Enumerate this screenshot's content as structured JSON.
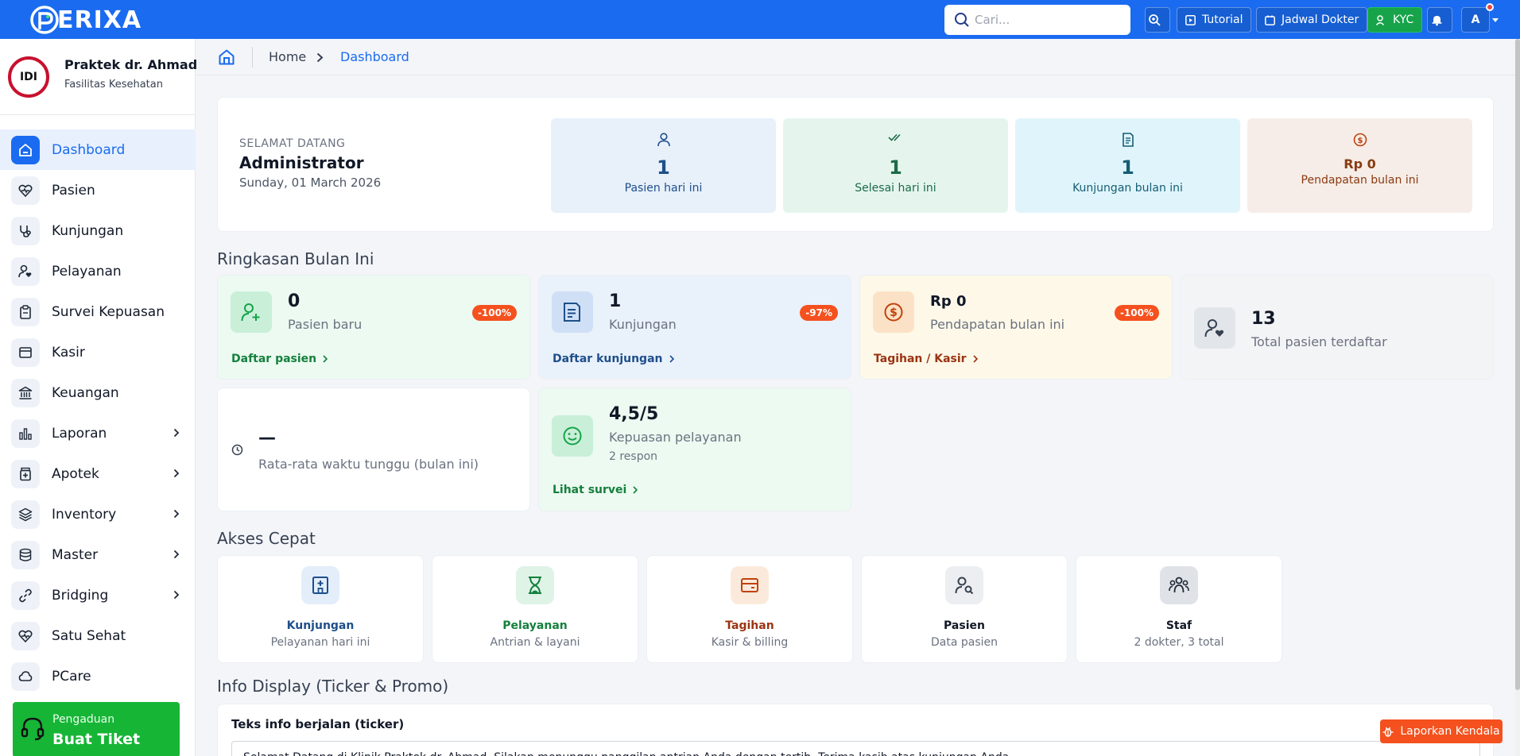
{
  "brand": {
    "name": "ERIXA"
  },
  "topbar": {
    "search_placeholder": "Cari...",
    "tutorial_label": "Tutorial",
    "schedule_label": "Jadwal Dokter",
    "kyc_label": "KYC",
    "avatar_letter": "A"
  },
  "sidebar": {
    "clinic_name": "Praktek dr. Ahmad",
    "clinic_type": "Fasilitas Kesehatan",
    "clinic_logo_text": "IDI",
    "items": [
      {
        "label": "Dashboard",
        "icon": "home-icon",
        "active": true
      },
      {
        "label": "Pasien",
        "icon": "heart-icon"
      },
      {
        "label": "Kunjungan",
        "icon": "stethoscope-icon"
      },
      {
        "label": "Pelayanan",
        "icon": "user-heart-icon"
      },
      {
        "label": "Survei Kepuasan",
        "icon": "clipboard-icon"
      },
      {
        "label": "Kasir",
        "icon": "cash-register-icon"
      },
      {
        "label": "Keuangan",
        "icon": "bank-icon"
      },
      {
        "label": "Laporan",
        "icon": "bar-chart-icon",
        "submenu": true
      },
      {
        "label": "Apotek",
        "icon": "medicine-icon",
        "submenu": true
      },
      {
        "label": "Inventory",
        "icon": "layers-icon",
        "submenu": true
      },
      {
        "label": "Master",
        "icon": "database-icon",
        "submenu": true
      },
      {
        "label": "Bridging",
        "icon": "link-icon",
        "submenu": true
      },
      {
        "label": "Satu Sehat",
        "icon": "heart-pulse-icon"
      },
      {
        "label": "PCare",
        "icon": "cloud-icon"
      }
    ],
    "complaint": {
      "small": "Pengaduan",
      "big": "Buat Tiket"
    }
  },
  "breadcrumb": {
    "home": "Home",
    "current": "Dashboard"
  },
  "welcome": {
    "greeting": "SELAMAT DATANG",
    "name": "Administrator",
    "date": "Sunday, 01 March 2026",
    "stats": [
      {
        "value": "1",
        "label": "Pasien hari ini",
        "color": "#1e4f8a",
        "bg": "#e8f0fa"
      },
      {
        "value": "1",
        "label": "Selesai hari ini",
        "color": "#1b6b47",
        "bg": "#e5f5ee"
      },
      {
        "value": "1",
        "label": "Kunjungan bulan ini",
        "color": "#155e75",
        "bg": "#e0f5fb"
      },
      {
        "value": "Rp 0",
        "label": "Pendapatan bulan ini",
        "color": "#8a3b12",
        "bg": "#f6ede8"
      }
    ]
  },
  "summary": {
    "title": "Ringkasan Bulan Ini",
    "cards": [
      {
        "value": "0",
        "label": "Pasien baru",
        "badge": "-100%",
        "link": "Daftar pasien"
      },
      {
        "value": "1",
        "label": "Kunjungan",
        "badge": "-97%",
        "link": "Daftar kunjungan"
      },
      {
        "value": "Rp 0",
        "label": "Pendapatan bulan ini",
        "badge": "-100%",
        "link": "Tagihan / Kasir"
      },
      {
        "value": "13",
        "label": "Total pasien terdaftar"
      },
      {
        "value": "—",
        "label": "Rata-rata waktu tunggu (bulan ini)"
      },
      {
        "value": "4,5/5",
        "label": "Kepuasan pelayanan",
        "sub": "2 respon",
        "link": "Lihat survei"
      }
    ]
  },
  "quick": {
    "title": "Akses Cepat",
    "items": [
      {
        "title": "Kunjungan",
        "sub": "Pelayanan hari ini"
      },
      {
        "title": "Pelayanan",
        "sub": "Antrian & layani"
      },
      {
        "title": "Tagihan",
        "sub": "Kasir & billing"
      },
      {
        "title": "Pasien",
        "sub": "Data pasien"
      },
      {
        "title": "Staf",
        "sub": "2 dokter, 3 total"
      }
    ]
  },
  "info": {
    "title": "Info Display (Ticker & Promo)",
    "ticker_label": "Teks info berjalan (ticker)",
    "ticker_text": "Selamat Datang di Klinik Praktek dr. Ahmad. Silakan menunggu panggilan antrian Anda dengan tertib. Terima kasih atas kunjungan Anda."
  },
  "report_button": "Laporkan Kendala"
}
